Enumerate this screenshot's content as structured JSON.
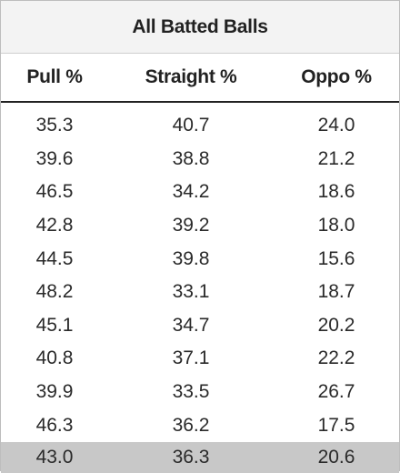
{
  "table": {
    "title": "All Batted Balls",
    "headers": [
      "Pull %",
      "Straight %",
      "Oppo %"
    ],
    "rows": [
      [
        "35.3",
        "40.7",
        "24.0"
      ],
      [
        "39.6",
        "38.8",
        "21.2"
      ],
      [
        "46.5",
        "34.2",
        "18.6"
      ],
      [
        "42.8",
        "39.2",
        "18.0"
      ],
      [
        "44.5",
        "39.8",
        "15.6"
      ],
      [
        "48.2",
        "33.1",
        "18.7"
      ],
      [
        "45.1",
        "34.7",
        "20.2"
      ],
      [
        "40.8",
        "37.1",
        "22.2"
      ],
      [
        "39.9",
        "33.5",
        "26.7"
      ],
      [
        "46.3",
        "36.2",
        "17.5"
      ]
    ],
    "total_row": [
      "43.0",
      "36.3",
      "20.6"
    ],
    "colors": {
      "title_background": "#f3f3f3",
      "total_row_background": "#c8c8c8",
      "header_rule": "#222222"
    }
  }
}
